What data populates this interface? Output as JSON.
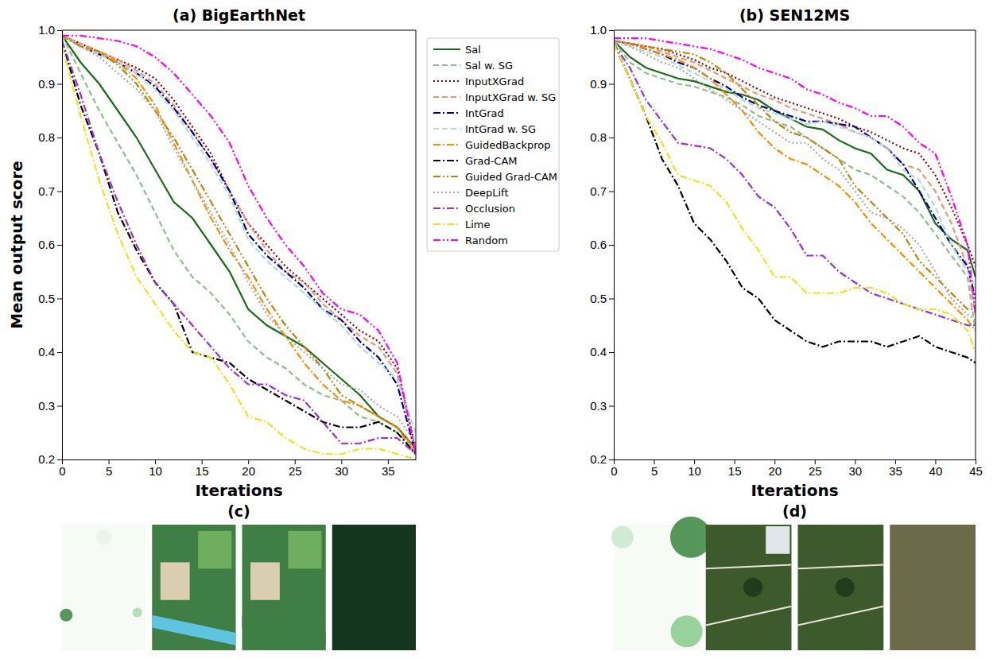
{
  "chart_data": [
    {
      "type": "line",
      "title": "(a) BigEarthNet",
      "x_label": "Iterations",
      "y_label": "Mean output score",
      "x": [
        0,
        2,
        4,
        6,
        8,
        10,
        12,
        14,
        16,
        18,
        20,
        22,
        24,
        26,
        28,
        30,
        32,
        34,
        36,
        38
      ],
      "xlim": [
        0,
        38
      ],
      "xticks": [
        0,
        5,
        10,
        15,
        20,
        25,
        30,
        35
      ],
      "ylim": [
        0.2,
        1
      ],
      "yticks": [
        0.2,
        0.3,
        0.4,
        0.5,
        0.6,
        0.7,
        0.8,
        0.9,
        {
          "value": 1,
          "label": "1.0"
        }
      ],
      "grid": false,
      "legend": "right",
      "series": [
        {
          "name": "Sal",
          "color": "#1a6b1a",
          "line_style": "solid",
          "values": [
            0.99,
            0.94,
            0.9,
            0.85,
            0.8,
            0.74,
            0.68,
            0.65,
            0.6,
            0.55,
            0.48,
            0.45,
            0.43,
            0.41,
            0.38,
            0.35,
            0.32,
            0.28,
            0.26,
            0.22
          ]
        },
        {
          "name": "Sal w. SG",
          "color": "#8fbc8f",
          "line_style": "dashed",
          "values": [
            0.99,
            0.92,
            0.85,
            0.79,
            0.73,
            0.66,
            0.59,
            0.54,
            0.51,
            0.47,
            0.42,
            0.39,
            0.37,
            0.34,
            0.32,
            0.31,
            0.28,
            0.27,
            0.25,
            0.22
          ]
        },
        {
          "name": "InputXGrad",
          "color": "#8b0000",
          "line_style": "dotted",
          "values": [
            0.99,
            0.975,
            0.96,
            0.945,
            0.93,
            0.91,
            0.87,
            0.82,
            0.77,
            0.7,
            0.64,
            0.6,
            0.56,
            0.53,
            0.5,
            0.47,
            0.44,
            0.42,
            0.37,
            0.22
          ]
        },
        {
          "name": "InputXGrad w. SG",
          "color": "#e9967a",
          "line_style": "dashed",
          "values": [
            0.99,
            0.975,
            0.96,
            0.945,
            0.925,
            0.9,
            0.86,
            0.81,
            0.76,
            0.7,
            0.64,
            0.59,
            0.55,
            0.53,
            0.49,
            0.46,
            0.43,
            0.41,
            0.36,
            0.22
          ]
        },
        {
          "name": "IntGrad",
          "color": "#00008b",
          "line_style": "dashdot",
          "values": [
            0.99,
            0.97,
            0.955,
            0.94,
            0.92,
            0.895,
            0.855,
            0.81,
            0.76,
            0.7,
            0.62,
            0.58,
            0.55,
            0.52,
            0.48,
            0.46,
            0.42,
            0.39,
            0.34,
            0.21
          ]
        },
        {
          "name": "IntGrad w. SG",
          "color": "#add8e6",
          "line_style": "dashed",
          "values": [
            0.99,
            0.97,
            0.955,
            0.94,
            0.92,
            0.89,
            0.85,
            0.8,
            0.75,
            0.69,
            0.61,
            0.57,
            0.54,
            0.51,
            0.48,
            0.45,
            0.41,
            0.38,
            0.35,
            0.25
          ]
        },
        {
          "name": "GuidedBackprop",
          "color": "#ff8c00",
          "line_style": "dashdot",
          "values": [
            0.99,
            0.97,
            0.96,
            0.94,
            0.91,
            0.86,
            0.79,
            0.72,
            0.65,
            0.59,
            0.54,
            0.48,
            0.43,
            0.38,
            0.34,
            0.31,
            0.3,
            0.28,
            0.26,
            0.21
          ]
        },
        {
          "name": "Grad-CAM",
          "color": "#000000",
          "line_style": "dashdot",
          "values": [
            0.98,
            0.86,
            0.77,
            0.66,
            0.59,
            0.53,
            0.49,
            0.4,
            0.39,
            0.38,
            0.35,
            0.33,
            0.31,
            0.29,
            0.27,
            0.26,
            0.26,
            0.27,
            0.25,
            0.21
          ]
        },
        {
          "name": "Guided Grad-CAM",
          "color": "#b8860b",
          "line_style": "dashdotdot",
          "values": [
            0.99,
            0.97,
            0.96,
            0.935,
            0.9,
            0.85,
            0.8,
            0.74,
            0.68,
            0.62,
            0.56,
            0.5,
            0.45,
            0.41,
            0.37,
            0.32,
            0.3,
            0.28,
            0.26,
            0.22
          ]
        },
        {
          "name": "DeepLift",
          "color": "#a9a9a9",
          "line_style": "dotted",
          "values": [
            0.99,
            0.97,
            0.95,
            0.92,
            0.89,
            0.85,
            0.78,
            0.72,
            0.66,
            0.6,
            0.53,
            0.47,
            0.43,
            0.4,
            0.37,
            0.34,
            0.33,
            0.3,
            0.28,
            0.23
          ]
        },
        {
          "name": "Occlusion",
          "color": "#9932cc",
          "line_style": "dashdot",
          "values": [
            0.98,
            0.88,
            0.77,
            0.68,
            0.6,
            0.53,
            0.49,
            0.45,
            0.41,
            0.37,
            0.34,
            0.34,
            0.32,
            0.31,
            0.27,
            0.23,
            0.23,
            0.24,
            0.24,
            0.21
          ]
        },
        {
          "name": "Lime",
          "color": "#f0e020",
          "line_style": "dashdot",
          "values": [
            0.97,
            0.84,
            0.72,
            0.62,
            0.54,
            0.49,
            0.44,
            0.4,
            0.39,
            0.34,
            0.28,
            0.27,
            0.24,
            0.22,
            0.21,
            0.21,
            0.22,
            0.22,
            0.21,
            0.2
          ]
        },
        {
          "name": "Random",
          "color": "#ff00ff",
          "line_style": "dashdotdot",
          "values": [
            0.99,
            0.99,
            0.985,
            0.98,
            0.97,
            0.95,
            0.92,
            0.88,
            0.84,
            0.79,
            0.71,
            0.65,
            0.6,
            0.56,
            0.51,
            0.48,
            0.47,
            0.44,
            0.38,
            0.21
          ]
        }
      ]
    },
    {
      "type": "line",
      "title": "(b) SEN12MS",
      "x_label": "Iterations",
      "x": [
        0,
        2,
        4,
        6,
        8,
        10,
        12,
        14,
        16,
        18,
        20,
        22,
        24,
        26,
        28,
        30,
        32,
        34,
        36,
        38,
        40,
        42,
        44,
        45
      ],
      "xlim": [
        0,
        45
      ],
      "xticks": [
        0,
        5,
        10,
        15,
        20,
        25,
        30,
        35,
        40,
        45
      ],
      "ylim": [
        0.2,
        1
      ],
      "yticks": [
        0.2,
        0.3,
        0.4,
        0.5,
        0.6,
        0.7,
        0.8,
        0.9,
        {
          "value": 1,
          "label": "1.0"
        }
      ],
      "grid": false,
      "series": [
        {
          "color": "#1a6b1a",
          "line_style": "solid",
          "values": [
            0.98,
            0.95,
            0.93,
            0.92,
            0.91,
            0.905,
            0.895,
            0.885,
            0.88,
            0.87,
            0.85,
            0.835,
            0.82,
            0.815,
            0.795,
            0.78,
            0.77,
            0.74,
            0.73,
            0.7,
            0.64,
            0.61,
            0.59,
            0.54
          ]
        },
        {
          "color": "#8fbc8f",
          "line_style": "dashed",
          "values": [
            0.98,
            0.94,
            0.92,
            0.91,
            0.9,
            0.895,
            0.885,
            0.875,
            0.86,
            0.84,
            0.83,
            0.82,
            0.8,
            0.78,
            0.76,
            0.74,
            0.73,
            0.71,
            0.69,
            0.66,
            0.62,
            0.58,
            0.54,
            0.44
          ]
        },
        {
          "color": "#8b0000",
          "line_style": "dotted",
          "values": [
            0.98,
            0.975,
            0.97,
            0.965,
            0.955,
            0.945,
            0.93,
            0.92,
            0.905,
            0.89,
            0.875,
            0.865,
            0.855,
            0.845,
            0.835,
            0.82,
            0.81,
            0.795,
            0.78,
            0.77,
            0.73,
            0.67,
            0.6,
            0.56
          ]
        },
        {
          "color": "#e9967a",
          "line_style": "dashed",
          "values": [
            0.98,
            0.975,
            0.97,
            0.96,
            0.95,
            0.94,
            0.925,
            0.91,
            0.895,
            0.88,
            0.87,
            0.855,
            0.845,
            0.835,
            0.825,
            0.81,
            0.8,
            0.78,
            0.75,
            0.74,
            0.7,
            0.64,
            0.56,
            0.47
          ]
        },
        {
          "color": "#00008b",
          "line_style": "dashdot",
          "values": [
            0.98,
            0.975,
            0.965,
            0.955,
            0.94,
            0.93,
            0.91,
            0.895,
            0.875,
            0.86,
            0.85,
            0.84,
            0.83,
            0.83,
            0.825,
            0.82,
            0.8,
            0.78,
            0.75,
            0.7,
            0.65,
            0.6,
            0.56,
            0.5
          ]
        },
        {
          "color": "#add8e6",
          "line_style": "dashed",
          "values": [
            0.98,
            0.97,
            0.96,
            0.95,
            0.935,
            0.92,
            0.905,
            0.89,
            0.87,
            0.855,
            0.845,
            0.835,
            0.825,
            0.83,
            0.82,
            0.81,
            0.8,
            0.78,
            0.74,
            0.72,
            0.67,
            0.6,
            0.55,
            0.52
          ]
        },
        {
          "color": "#ff8c00",
          "line_style": "dashdot",
          "values": [
            0.98,
            0.975,
            0.965,
            0.955,
            0.945,
            0.93,
            0.91,
            0.88,
            0.85,
            0.81,
            0.78,
            0.76,
            0.75,
            0.73,
            0.71,
            0.68,
            0.64,
            0.61,
            0.58,
            0.55,
            0.52,
            0.49,
            0.46,
            0.44
          ]
        },
        {
          "color": "#000000",
          "line_style": "dashdot",
          "values": [
            0.975,
            0.91,
            0.84,
            0.76,
            0.71,
            0.64,
            0.61,
            0.57,
            0.52,
            0.5,
            0.46,
            0.44,
            0.42,
            0.41,
            0.42,
            0.42,
            0.42,
            0.41,
            0.42,
            0.43,
            0.41,
            0.4,
            0.39,
            0.38
          ]
        },
        {
          "color": "#b8860b",
          "line_style": "dashdotdot",
          "values": [
            0.98,
            0.975,
            0.97,
            0.965,
            0.96,
            0.955,
            0.94,
            0.92,
            0.89,
            0.86,
            0.83,
            0.81,
            0.8,
            0.78,
            0.76,
            0.71,
            0.68,
            0.65,
            0.62,
            0.57,
            0.54,
            0.51,
            0.48,
            0.48
          ]
        },
        {
          "color": "#a9a9a9",
          "line_style": "dotted",
          "values": [
            0.98,
            0.97,
            0.955,
            0.94,
            0.93,
            0.91,
            0.89,
            0.87,
            0.85,
            0.83,
            0.81,
            0.79,
            0.79,
            0.76,
            0.74,
            0.7,
            0.66,
            0.65,
            0.63,
            0.6,
            0.55,
            0.5,
            0.47,
            0.46
          ]
        },
        {
          "color": "#9932cc",
          "line_style": "dashdot",
          "values": [
            0.975,
            0.93,
            0.87,
            0.83,
            0.79,
            0.785,
            0.78,
            0.76,
            0.73,
            0.69,
            0.67,
            0.63,
            0.58,
            0.58,
            0.55,
            0.53,
            0.51,
            0.5,
            0.49,
            0.48,
            0.47,
            0.46,
            0.45,
            0.45
          ]
        },
        {
          "color": "#f0e020",
          "line_style": "dashdot",
          "values": [
            0.975,
            0.91,
            0.84,
            0.79,
            0.73,
            0.72,
            0.71,
            0.68,
            0.63,
            0.59,
            0.54,
            0.54,
            0.51,
            0.51,
            0.51,
            0.52,
            0.52,
            0.51,
            0.49,
            0.48,
            0.48,
            0.47,
            0.44,
            0.4
          ]
        },
        {
          "color": "#ff00ff",
          "line_style": "dashdotdot",
          "values": [
            0.985,
            0.985,
            0.985,
            0.98,
            0.975,
            0.97,
            0.965,
            0.955,
            0.945,
            0.93,
            0.92,
            0.91,
            0.89,
            0.88,
            0.865,
            0.855,
            0.84,
            0.84,
            0.82,
            0.79,
            0.77,
            0.69,
            0.6,
            0.47
          ]
        }
      ]
    }
  ],
  "panels": [
    {
      "label": "(c)"
    },
    {
      "label": "(d)"
    }
  ]
}
